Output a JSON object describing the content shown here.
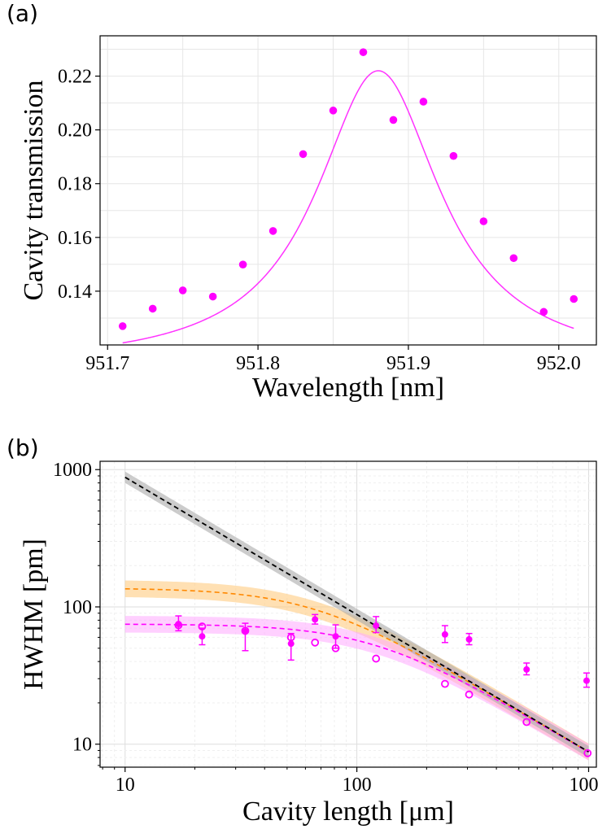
{
  "chart_data": [
    {
      "type": "scatter",
      "panel_label": "(a)",
      "xlabel": "Wavelength [nm]",
      "ylabel": "Cavity transmission",
      "xlim": [
        951.695,
        952.025
      ],
      "ylim": [
        0.12,
        0.235
      ],
      "x_ticks": [
        951.7,
        951.8,
        951.9,
        952.0
      ],
      "x_tick_labels": [
        "951.7",
        "951.8",
        "951.9",
        "952.0"
      ],
      "y_ticks": [
        0.14,
        0.16,
        0.18,
        0.2,
        0.22
      ],
      "y_tick_labels": [
        "0.14",
        "0.16",
        "0.18",
        "0.20",
        "0.22"
      ],
      "grid": true,
      "colors": {
        "data": "#ff00ff",
        "fit": "#ff33ff"
      },
      "points": {
        "x": [
          951.71,
          951.73,
          951.75,
          951.77,
          951.79,
          951.81,
          951.83,
          951.85,
          951.87,
          951.89,
          951.91,
          951.93,
          951.95,
          951.97,
          951.99,
          952.01
        ],
        "y": [
          0.127,
          0.1335,
          0.1403,
          0.138,
          0.1499,
          0.1624,
          0.191,
          0.2072,
          0.2289,
          0.2037,
          0.2105,
          0.1903,
          0.166,
          0.1523,
          0.1323,
          0.1371
        ]
      },
      "fit": {
        "model": "lorentzian",
        "center": 951.88,
        "hwhm": 0.05,
        "offset": 0.112,
        "amplitude": 0.11
      }
    },
    {
      "type": "scatter",
      "panel_label": "(b)",
      "xlabel": "Cavity length [μm]",
      "ylabel": "HWHM [pm]",
      "x_scale": "log",
      "y_scale": "log",
      "xlim": [
        7.8,
        1080
      ],
      "ylim": [
        6.8,
        1150
      ],
      "x_ticks": [
        10,
        100,
        1000
      ],
      "x_tick_labels": [
        "10",
        "100",
        "1000"
      ],
      "y_ticks": [
        10,
        100,
        1000
      ],
      "y_tick_labels": [
        "10",
        "100",
        "1000"
      ],
      "grid": true,
      "colors": {
        "black_line": "#000000",
        "black_band": "#aaaaaa",
        "orange_line": "#ff8800",
        "orange_band": "#ffcc80",
        "magenta": "#ff00ff",
        "magenta_band": "#ffaaff"
      },
      "filled_points": {
        "x": [
          17,
          21.5,
          33,
          52,
          66,
          81,
          121,
          240,
          305,
          540,
          980
        ],
        "y": [
          75,
          61,
          66,
          54,
          81,
          61,
          73,
          63,
          58,
          35,
          29
        ],
        "err_low": [
          8,
          8,
          18,
          13,
          6,
          11,
          8,
          8,
          5,
          3,
          3
        ],
        "err_high": [
          11,
          9,
          10,
          10,
          7,
          13,
          12,
          10,
          6,
          4,
          4
        ]
      },
      "open_points": {
        "x": [
          17,
          21.5,
          33,
          52,
          66,
          81,
          121,
          240,
          305,
          540,
          990
        ],
        "y": [
          73.5,
          72,
          67,
          60,
          55,
          50,
          42,
          27.5,
          23,
          14.5,
          8.6
        ]
      },
      "black_line": {
        "x": [
          10,
          1000
        ],
        "y": [
          880,
          8.8
        ],
        "band_factor": 1.1
      },
      "orange_curve": {
        "model": "hypot",
        "c": 880,
        "k": 137,
        "x_range": [
          10,
          1000
        ],
        "band_factor": 1.15
      },
      "magenta_curve": {
        "model": "hypot",
        "c": 880,
        "k": 75,
        "x_range": [
          10,
          1000
        ],
        "band_factor": 1.15
      }
    }
  ]
}
